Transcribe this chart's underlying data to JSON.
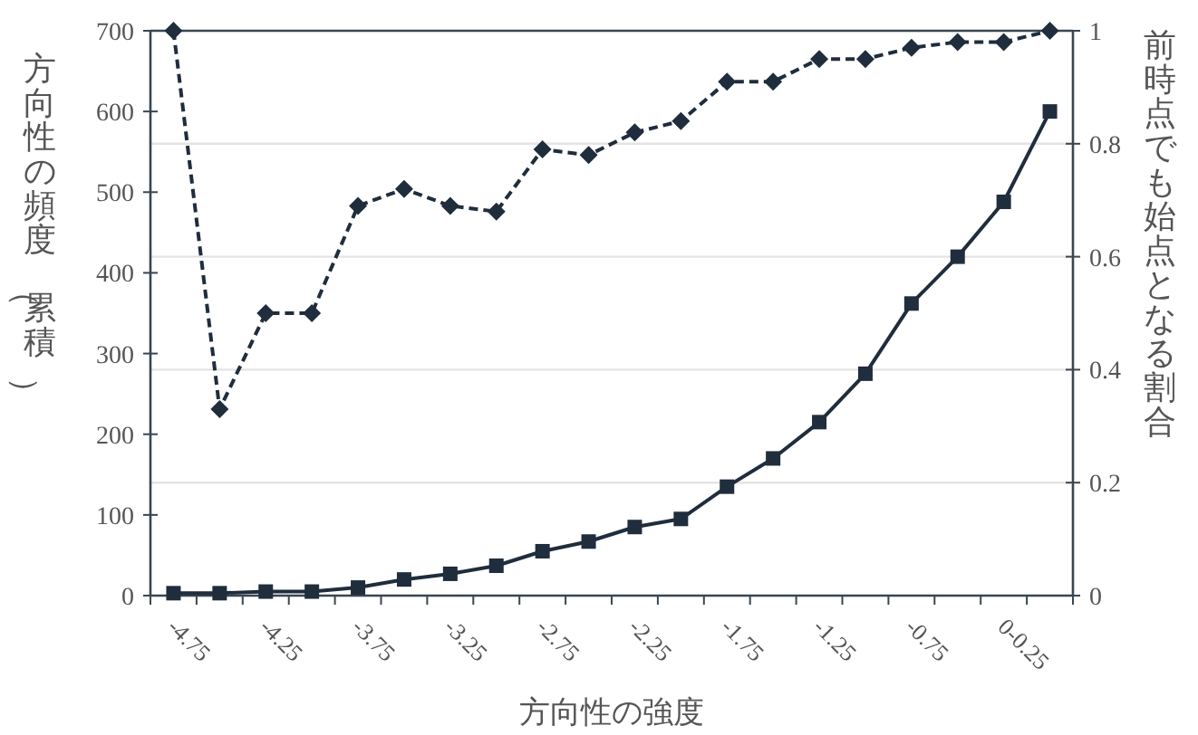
{
  "chart_data": {
    "type": "line",
    "xlabel": "方向性の強度",
    "ylabel": "方向性の頻度（累積）",
    "y2label": "前時点でも始点となる割合",
    "categories": [
      "-4.75",
      null,
      "-4.25",
      null,
      "-3.75",
      null,
      "-3.25",
      null,
      "-2.75",
      null,
      "-2.25",
      null,
      "-1.75",
      null,
      "-1.25",
      null,
      "-0.75",
      null,
      "0-0.25",
      null
    ],
    "series": [
      {
        "color": "#1f2d3d",
        "marker": "square",
        "line_style": "solid",
        "values": [
          3,
          3,
          5,
          5,
          10,
          20,
          27,
          37,
          55,
          67,
          85,
          95,
          135,
          170,
          215,
          275,
          362,
          420,
          488,
          600
        ]
      },
      {
        "color": "#1f2d3d",
        "marker": "diamond",
        "line_style": "dashed",
        "axis": "y2",
        "values": [
          1.0,
          0.33,
          0.5,
          0.5,
          0.69,
          0.72,
          0.69,
          0.68,
          0.79,
          0.78,
          0.82,
          0.84,
          0.91,
          0.91,
          0.95,
          0.95,
          0.97,
          0.98,
          0.98,
          1.0
        ]
      }
    ],
    "ylim": [
      0,
      700
    ],
    "yticks": [
      0,
      100,
      200,
      300,
      400,
      500,
      600,
      700
    ],
    "y2lim": [
      0,
      1
    ],
    "y2ticks": [
      0,
      0.2,
      0.4,
      0.6,
      0.8,
      1
    ],
    "grid": true
  }
}
